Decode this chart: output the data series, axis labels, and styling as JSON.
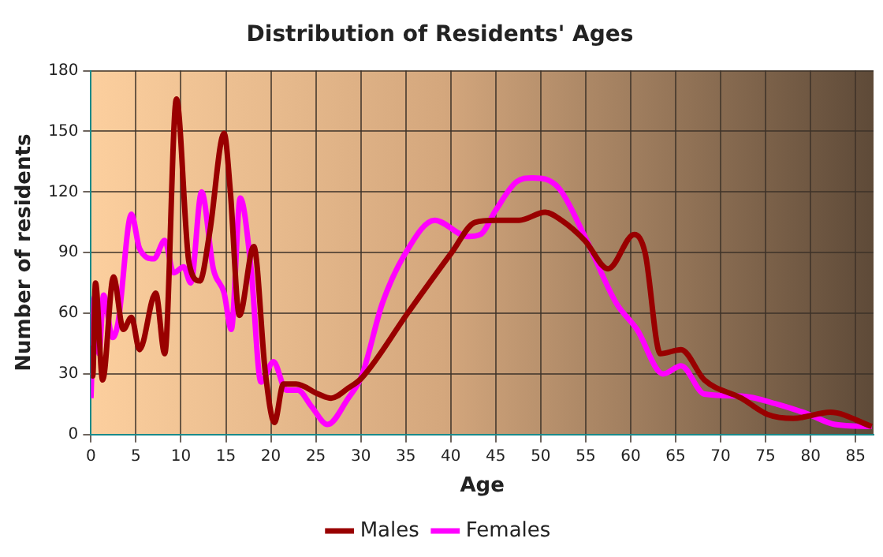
{
  "chart_data": {
    "type": "line",
    "title": "Distribution of Residents' Ages",
    "xlabel": "Age",
    "ylabel": "Number of residents",
    "xlim": [
      0,
      87
    ],
    "xticks": [
      0,
      5,
      10,
      15,
      20,
      25,
      30,
      35,
      40,
      45,
      50,
      55,
      60,
      65,
      70,
      75,
      80,
      85
    ],
    "ylim": [
      0,
      180
    ],
    "yticks": [
      0,
      30,
      60,
      90,
      120,
      150,
      180
    ],
    "grid": true,
    "legend": "bottom",
    "marker": "none",
    "line_style": "solid",
    "series": [
      {
        "name": "Males",
        "color": "#990000",
        "x": [
          0,
          0.2,
          0.5,
          1.3,
          2.5,
          3.6,
          4.5,
          5.4,
          7.2,
          8.2,
          9.5,
          10.9,
          12.1,
          13.2,
          14.8,
          15.5,
          16.5,
          18.1,
          19.4,
          20.4,
          21.4,
          22.8,
          25.3,
          26.7,
          28.6,
          30.1,
          35.2,
          40.1,
          42.7,
          45,
          47.6,
          50.5,
          52.3,
          54.9,
          57.5,
          60.4,
          61.6,
          63.3,
          65.6,
          68.2,
          72.3,
          75.2,
          78.1,
          82.2,
          86.8
        ],
        "values": [
          44,
          29,
          75,
          27,
          78,
          52,
          58,
          42,
          70,
          40,
          166,
          85,
          76,
          100,
          149,
          120,
          59,
          93,
          30,
          6,
          25,
          25,
          20,
          18,
          23,
          28,
          60,
          90,
          105,
          106,
          106,
          110,
          106,
          96,
          82,
          99,
          90,
          40,
          42,
          27,
          18,
          10,
          8,
          11,
          4
        ]
      },
      {
        "name": "Females",
        "color": "#ff00ff",
        "x": [
          0,
          0.4,
          0.9,
          1.4,
          2.4,
          3,
          4.5,
          5.4,
          7,
          8.2,
          9.2,
          10.3,
          11.1,
          12.3,
          13.6,
          14.8,
          15.6,
          16.6,
          17.8,
          18.9,
          20.3,
          21.7,
          23,
          24.5,
          26.3,
          28.6,
          30.1,
          32.4,
          35,
          38.2,
          41.9,
          43.3,
          45,
          47.3,
          49.1,
          52,
          54.9,
          58.4,
          60.7,
          63.6,
          65.6,
          68.2,
          72.3,
          76.3,
          79.8,
          82.7,
          86.8
        ],
        "values": [
          18,
          68,
          40,
          69,
          48,
          55,
          109,
          92,
          87,
          96,
          80,
          83,
          75,
          120,
          82,
          70,
          52,
          117,
          82,
          26,
          36,
          22,
          22,
          14,
          5,
          18,
          29,
          65,
          90,
          106,
          98,
          99,
          111,
          125,
          127,
          122,
          98,
          65,
          52,
          30,
          34,
          20,
          19,
          15,
          10,
          5,
          4
        ]
      }
    ]
  }
}
